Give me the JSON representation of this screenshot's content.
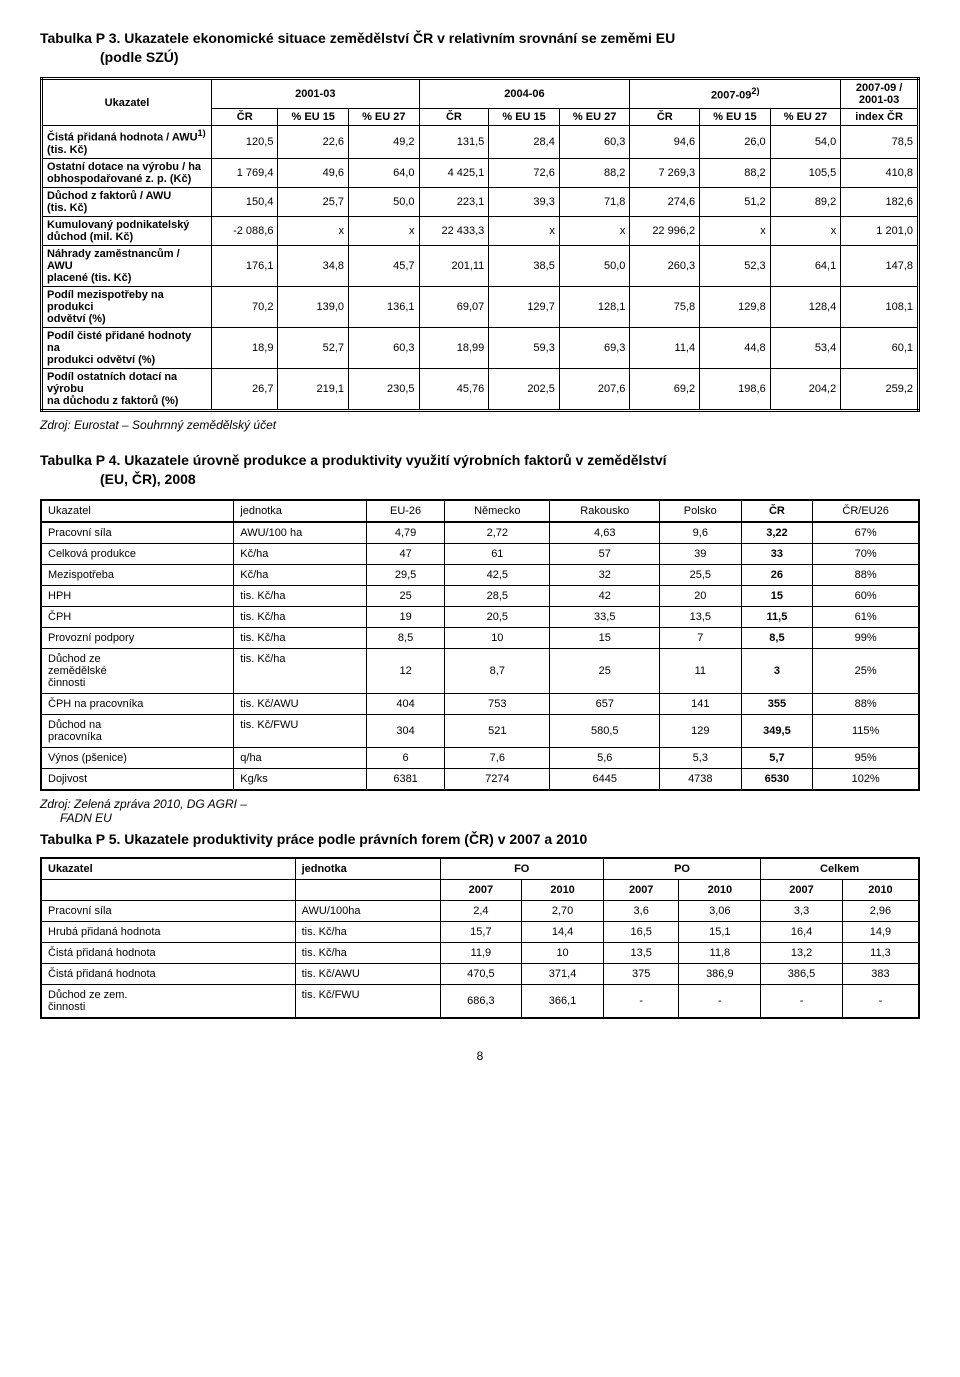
{
  "page_number": "8",
  "table3": {
    "title_prefix": "Tabulka P 3. ",
    "title_main": "Ukazatele ekonomické situace zemědělství ČR v relativním srovnání se zeměmi EU",
    "title_sub": "(podle SZÚ)",
    "header": {
      "ukazatel": "Ukazatel",
      "period1": "2001-03",
      "period2": "2004-06",
      "period3": "2007-09",
      "period3_sup": "2)",
      "period4_top": "2007-09 /",
      "period4_bot": "2001-03",
      "cr": "ČR",
      "eu15": "% EU 15",
      "eu27": "% EU 27",
      "index": "index ČR"
    },
    "rows": [
      {
        "label_l1": "Čistá přidaná hodnota / AWU",
        "label_sup": "1)",
        "label_l2": "(tis. Kč)",
        "v": [
          "120,5",
          "22,6",
          "49,2",
          "131,5",
          "28,4",
          "60,3",
          "94,6",
          "26,0",
          "54,0",
          "78,5"
        ]
      },
      {
        "label_l1": "Ostatní dotace na výrobu / ha",
        "label_l2": "obhospodařované z. p. (Kč)",
        "v": [
          "1 769,4",
          "49,6",
          "64,0",
          "4 425,1",
          "72,6",
          "88,2",
          "7 269,3",
          "88,2",
          "105,5",
          "410,8"
        ]
      },
      {
        "label_l1": "Důchod z faktorů / AWU",
        "label_l2": "(tis. Kč)",
        "v": [
          "150,4",
          "25,7",
          "50,0",
          "223,1",
          "39,3",
          "71,8",
          "274,6",
          "51,2",
          "89,2",
          "182,6"
        ]
      },
      {
        "label_l1": "Kumulovaný podnikatelský",
        "label_l2": "důchod (mil. Kč)",
        "v": [
          "-2 088,6",
          "x",
          "x",
          "22 433,3",
          "x",
          "x",
          "22 996,2",
          "x",
          "x",
          "1 201,0"
        ]
      },
      {
        "label_l1": "Náhrady zaměstnancům / AWU",
        "label_l2": "placené (tis. Kč)",
        "v": [
          "176,1",
          "34,8",
          "45,7",
          "201,11",
          "38,5",
          "50,0",
          "260,3",
          "52,3",
          "64,1",
          "147,8"
        ]
      },
      {
        "label_l1": "Podíl mezispotřeby na produkci",
        "label_l2": "odvětví (%)",
        "v": [
          "70,2",
          "139,0",
          "136,1",
          "69,07",
          "129,7",
          "128,1",
          "75,8",
          "129,8",
          "128,4",
          "108,1"
        ]
      },
      {
        "label_l1": "Podíl čisté přidané hodnoty na",
        "label_l2": "produkci odvětví (%)",
        "v": [
          "18,9",
          "52,7",
          "60,3",
          "18,99",
          "59,3",
          "69,3",
          "11,4",
          "44,8",
          "53,4",
          "60,1"
        ]
      },
      {
        "label_l1": "Podíl ostatních dotací na výrobu",
        "label_l2": "na důchodu z faktorů (%)",
        "v": [
          "26,7",
          "219,1",
          "230,5",
          "45,76",
          "202,5",
          "207,6",
          "69,2",
          "198,6",
          "204,2",
          "259,2"
        ]
      }
    ],
    "source": "Zdroj:  Eurostat – Souhrnný zemědělský účet"
  },
  "table4": {
    "title_prefix": "Tabulka P 4. ",
    "title_main": "Ukazatele úrovně produkce a produktivity využití výrobních faktorů v zemědělství",
    "title_sub": "(EU, ČR), 2008",
    "headers": [
      "Ukazatel",
      "jednotka",
      "EU-26",
      "Německo",
      "Rakousko",
      "Polsko",
      "ČR",
      "ČR/EU26"
    ],
    "rows": [
      {
        "label": "Pracovní síla",
        "unit": "AWU/100 ha",
        "v": [
          "4,79",
          "2,72",
          "4,63",
          "9,6",
          "3,22",
          "67%"
        ],
        "bold_cr": true
      },
      {
        "label": "Celková produkce",
        "unit": "Kč/ha",
        "v": [
          "47",
          "61",
          "57",
          "39",
          "33",
          "70%"
        ],
        "bold_cr": true
      },
      {
        "label": "Mezispotřeba",
        "unit": "Kč/ha",
        "v": [
          "29,5",
          "42,5",
          "32",
          "25,5",
          "26",
          "88%"
        ],
        "bold_cr": true
      },
      {
        "label": "HPH",
        "unit": "tis. Kč/ha",
        "v": [
          "25",
          "28,5",
          "42",
          "20",
          "15",
          "60%"
        ],
        "bold_cr": true
      },
      {
        "label": "ČPH",
        "unit": "tis. Kč/ha",
        "v": [
          "19",
          "20,5",
          "33,5",
          "13,5",
          "11,5",
          "61%"
        ],
        "bold_cr": true
      },
      {
        "label": "Provozní podpory",
        "unit": "tis. Kč/ha",
        "v": [
          "8,5",
          "10",
          "15",
          "7",
          "8,5",
          "99%"
        ],
        "bold_cr": true
      },
      {
        "label": "Důchod ze\nzemědělské\nčinnosti",
        "unit": "tis. Kč/ha",
        "v": [
          "12",
          "8,7",
          "25",
          "11",
          "3",
          "25%"
        ],
        "bold_cr": true,
        "multiline": true
      },
      {
        "label": "ČPH na pracovníka",
        "unit": "tis. Kč/AWU",
        "v": [
          "404",
          "753",
          "657",
          "141",
          "355",
          "88%"
        ],
        "bold_cr": true
      },
      {
        "label": "Důchod na\npracovníka",
        "unit": "tis. Kč/FWU",
        "v": [
          "304",
          "521",
          "580,5",
          "129",
          "349,5",
          "115%"
        ],
        "bold_cr": true,
        "multiline": true
      },
      {
        "label": "Výnos (pšenice)",
        "unit": "q/ha",
        "v": [
          "6",
          "7,6",
          "5,6",
          "5,3",
          "5,7",
          "95%"
        ],
        "bold_cr": true
      },
      {
        "label": "Dojivost",
        "unit": "Kg/ks",
        "v": [
          "6381",
          "7274",
          "6445",
          "4738",
          "6530",
          "102%"
        ],
        "bold_cr": true
      }
    ],
    "source_l1": "Zdroj: Zelená zpráva 2010, DG AGRI –",
    "source_l2": "FADN EU"
  },
  "table5": {
    "title_prefix": "Tabulka P 5. ",
    "title_main": "Ukazatele produktivity práce podle právních forem (ČR) v 2007 a 2010",
    "headers_top": [
      "Ukazatel",
      "jednotka",
      "FO",
      "PO",
      "Celkem"
    ],
    "headers_years": [
      "2007",
      "2010",
      "2007",
      "2010",
      "2007",
      "2010"
    ],
    "rows": [
      {
        "label": "Pracovní síla",
        "unit": "AWU/100ha",
        "v": [
          "2,4",
          "2,70",
          "3,6",
          "3,06",
          "3,3",
          "2,96"
        ]
      },
      {
        "label": "Hrubá přidaná hodnota",
        "unit": "tis. Kč/ha",
        "v": [
          "15,7",
          "14,4",
          "16,5",
          "15,1",
          "16,4",
          "14,9"
        ]
      },
      {
        "label": "Čistá přidaná hodnota",
        "unit": "tis. Kč/ha",
        "v": [
          "11,9",
          "10",
          "13,5",
          "11,8",
          "13,2",
          "11,3"
        ]
      },
      {
        "label": "Čistá přidaná hodnota",
        "unit": "tis. Kč/AWU",
        "v": [
          "470,5",
          "371,4",
          "375",
          "386,9",
          "386,5",
          "383"
        ]
      },
      {
        "label": "Důchod ze zem.\nčinnosti",
        "unit": "tis. Kč/FWU",
        "v": [
          "686,3",
          "366,1",
          "-",
          "-",
          "-",
          "-"
        ],
        "multiline": true
      }
    ]
  }
}
